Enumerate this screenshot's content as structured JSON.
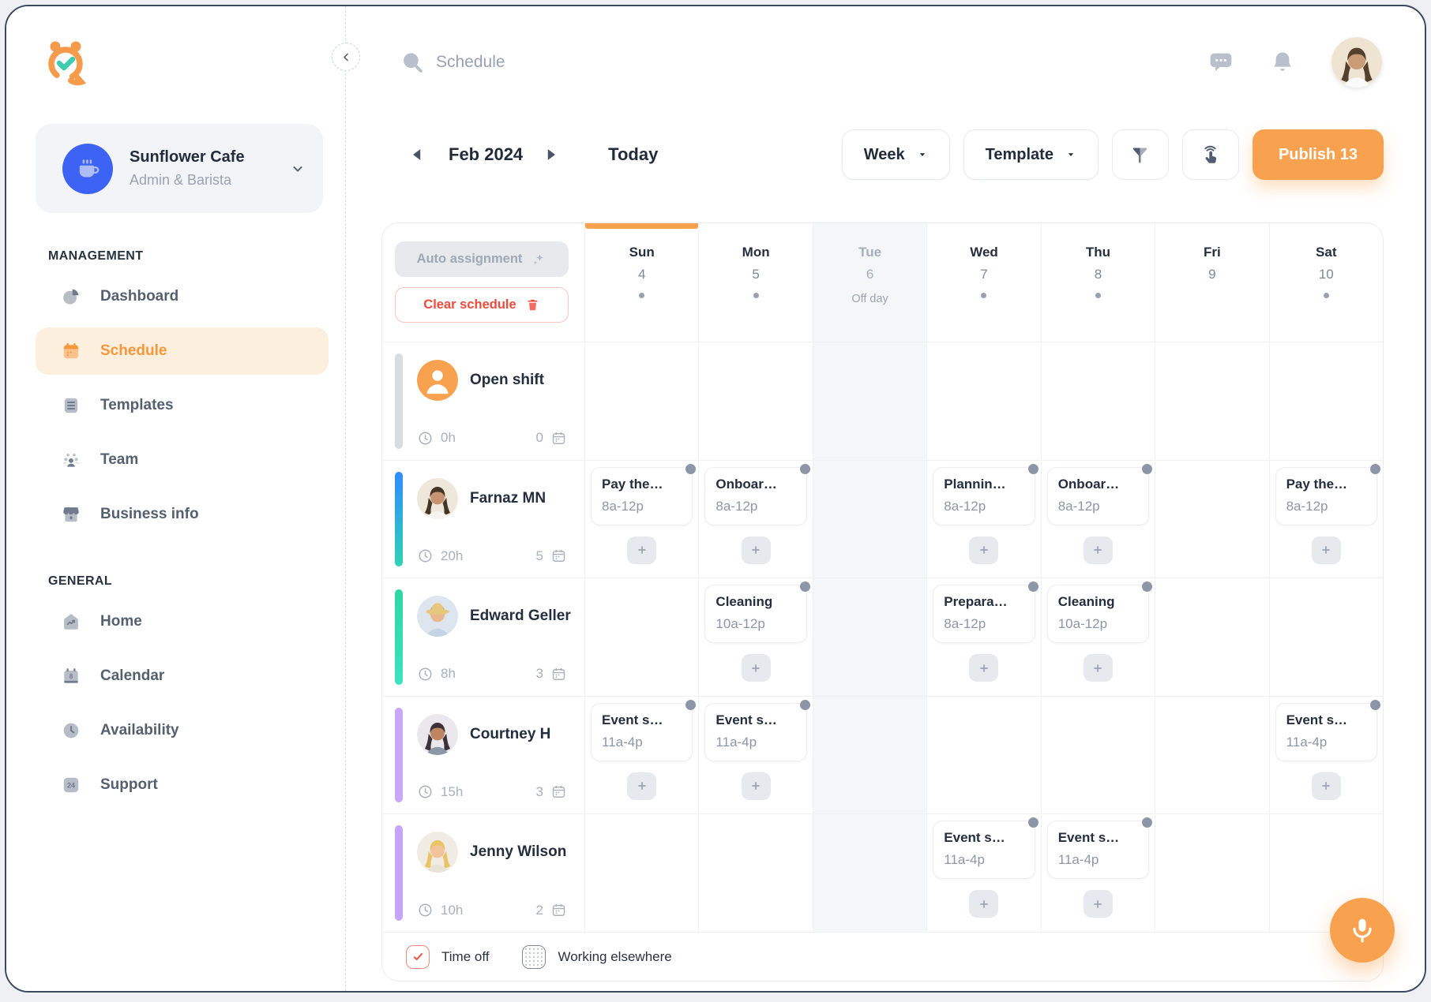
{
  "colors": {
    "accent": "#F8A14F",
    "accent_text": "#F7973B",
    "accent_bg": "#FDEFDE",
    "danger": "#EF4A3C",
    "text_dark": "#252E3F",
    "text_gray": "#98A1B1",
    "grid_line": "#EFF1F4",
    "off_day_bg": "#F4F6F8",
    "workspace_avatar_bg": "#3D63F5"
  },
  "icons": [
    "alarm-logo-icon",
    "coffee-mug-icon",
    "chevron-down-icon",
    "chevron-left-icon",
    "caret-down-icon",
    "triangle-left-icon",
    "triangle-right-icon",
    "search-icon",
    "chat-bubble-icon",
    "bell-icon",
    "funnel-icon",
    "tap-hand-icon",
    "sparkle-icon",
    "trash-icon",
    "clock-outline-icon",
    "calendar-outline-icon",
    "plus-icon",
    "check-icon",
    "mic-icon",
    "pie-chart-icon",
    "calendar-icon",
    "templates-icon",
    "team-icon",
    "storefront-icon",
    "home-icon",
    "calendar-date-icon",
    "clock-icon",
    "support-24-icon"
  ],
  "sidebar": {
    "workspace": {
      "name": "Sunflower Cafe",
      "role": "Admin & Barista"
    },
    "sections": [
      {
        "title": "MANAGEMENT",
        "items": [
          {
            "id": "dashboard",
            "label": "Dashboard",
            "icon": "pie-chart-icon",
            "active": false
          },
          {
            "id": "schedule",
            "label": "Schedule",
            "icon": "calendar-icon",
            "active": true
          },
          {
            "id": "templates",
            "label": "Templates",
            "icon": "templates-icon",
            "active": false
          },
          {
            "id": "team",
            "label": "Team",
            "icon": "team-icon",
            "active": false
          },
          {
            "id": "business-info",
            "label": "Business info",
            "icon": "storefront-icon",
            "active": false
          }
        ]
      },
      {
        "title": "GENERAL",
        "items": [
          {
            "id": "home",
            "label": "Home",
            "icon": "home-icon",
            "active": false
          },
          {
            "id": "calendar",
            "label": "Calendar",
            "icon": "calendar-date-icon",
            "active": false
          },
          {
            "id": "availability",
            "label": "Availability",
            "icon": "clock-icon",
            "active": false
          },
          {
            "id": "support",
            "label": "Support",
            "icon": "support-24-icon",
            "active": false
          }
        ]
      }
    ]
  },
  "header": {
    "page_title": "Schedule",
    "avatar": {
      "bg": "#EFE4D2",
      "hair": "#55402E",
      "skin": "#C99B77",
      "shirt": "#FAFAFA",
      "long": true
    }
  },
  "toolbar": {
    "period": "Feb 2024",
    "today": "Today",
    "view": "Week",
    "template": "Template",
    "publish": "Publish 13"
  },
  "schedule": {
    "auto_assignment": "Auto assignment",
    "clear_schedule": "Clear schedule",
    "days": [
      {
        "name": "Sun",
        "date": "4",
        "dot": true,
        "today": true,
        "off": false
      },
      {
        "name": "Mon",
        "date": "5",
        "dot": true,
        "today": false,
        "off": false
      },
      {
        "name": "Tue",
        "date": "6",
        "dot": false,
        "today": false,
        "off": true,
        "off_label": "Off day"
      },
      {
        "name": "Wed",
        "date": "7",
        "dot": true,
        "today": false,
        "off": false
      },
      {
        "name": "Thu",
        "date": "8",
        "dot": true,
        "today": false,
        "off": false
      },
      {
        "name": "Fri",
        "date": "9",
        "dot": false,
        "today": false,
        "off": false
      },
      {
        "name": "Sat",
        "date": "10",
        "dot": true,
        "today": false,
        "off": false
      }
    ],
    "rows": [
      {
        "name": "Open shift",
        "hours": "0h",
        "shift_count": "0",
        "bar_from": "#D9DCE0",
        "bar_to": "#D9DCE0",
        "avatar": {
          "type": "open",
          "bg": "#F8A14F"
        },
        "shifts": [
          null,
          null,
          null,
          null,
          null,
          null,
          null
        ]
      },
      {
        "name": "Farnaz MN",
        "hours": "20h",
        "shift_count": "5",
        "bar_from": "#2F8CFE",
        "bar_to": "#2FD3B5",
        "avatar": {
          "bg": "#EFE7DA",
          "hair": "#453527",
          "skin": "#C89371",
          "shirt": "#F6F4F1",
          "long": true
        },
        "shifts": [
          {
            "title": "Pay the…",
            "time": "8a-12p"
          },
          {
            "title": "Onboar…",
            "time": "8a-12p"
          },
          null,
          {
            "title": "Plannin…",
            "time": "8a-12p"
          },
          {
            "title": "Onboar…",
            "time": "8a-12p"
          },
          null,
          {
            "title": "Pay the…",
            "time": "8a-12p"
          }
        ]
      },
      {
        "name": "Edward Geller",
        "hours": "8h",
        "shift_count": "3",
        "bar_from": "#2FD6A4",
        "bar_to": "#3BE3C0",
        "avatar": {
          "bg": "#DDE6EE",
          "hair": "#8C6A4A",
          "skin": "#E9B88C",
          "shirt": "#C5D4E4",
          "hat": "#E8C77C",
          "long": false
        },
        "shifts": [
          null,
          {
            "title": "Cleaning",
            "time": "10a-12p"
          },
          null,
          {
            "title": "Prepara…",
            "time": "8a-12p"
          },
          {
            "title": "Cleaning",
            "time": "10a-12p"
          },
          null,
          null
        ]
      },
      {
        "name": "Courtney H",
        "hours": "15h",
        "shift_count": "3",
        "bar_from": "#C9A7FA",
        "bar_to": "#C9A7FA",
        "avatar": {
          "bg": "#EAE8EC",
          "hair": "#3E3238",
          "skin": "#BE8660",
          "shirt": "#8C97A8",
          "long": true
        },
        "shifts": [
          {
            "title": "Event s…",
            "time": "11a-4p"
          },
          {
            "title": "Event s…",
            "time": "11a-4p"
          },
          null,
          null,
          null,
          null,
          {
            "title": "Event s…",
            "time": "11a-4p"
          }
        ]
      },
      {
        "name": "Jenny Wilson",
        "hours": "10h",
        "shift_count": "2",
        "bar_from": "#C4A5F9",
        "bar_to": "#C4A5F9",
        "avatar": {
          "bg": "#F1ECE3",
          "hair": "#E9C464",
          "skin": "#F2C49E",
          "shirt": "#E9E2D6",
          "long": true
        },
        "shifts": [
          null,
          null,
          null,
          {
            "title": "Event s…",
            "time": "11a-4p"
          },
          {
            "title": "Event s…",
            "time": "11a-4p"
          },
          null,
          null
        ]
      }
    ],
    "legend": [
      {
        "id": "time-off",
        "label": "Time off"
      },
      {
        "id": "working-elsewhere",
        "label": "Working elsewhere"
      }
    ]
  }
}
